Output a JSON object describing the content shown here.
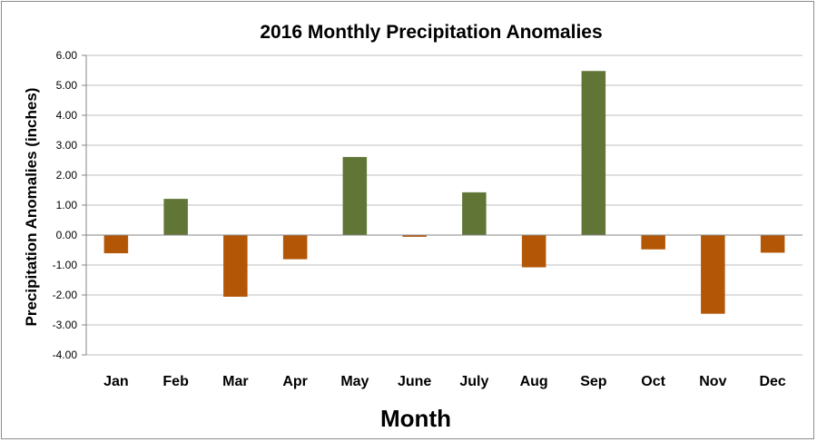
{
  "chart_data": {
    "type": "bar",
    "title": "2016 Monthly Precipitation Anomalies",
    "xlabel": "Month",
    "ylabel": "Precipitation Anomalies (inches)",
    "categories": [
      "Jan",
      "Feb",
      "Mar",
      "Apr",
      "May",
      "June",
      "July",
      "Aug",
      "Sep",
      "Oct",
      "Nov",
      "Dec"
    ],
    "values": [
      -0.6,
      1.2,
      -2.05,
      -0.8,
      2.6,
      -0.05,
      1.42,
      -1.07,
      5.47,
      -0.47,
      -2.62,
      -0.58
    ],
    "ylim": [
      -4,
      6
    ],
    "yticks": [
      "6.00",
      "5.00",
      "4.00",
      "3.00",
      "2.00",
      "1.00",
      "0.00",
      "-1.00",
      "-2.00",
      "-3.00",
      "-4.00"
    ],
    "ytick_values": [
      6,
      5,
      4,
      3,
      2,
      1,
      0,
      -1,
      -2,
      -3,
      -4
    ],
    "grid": true,
    "colors": {
      "positive": "#617537",
      "negative": "#b35706",
      "grid": "#bfbfbf",
      "axis": "#868686"
    }
  }
}
